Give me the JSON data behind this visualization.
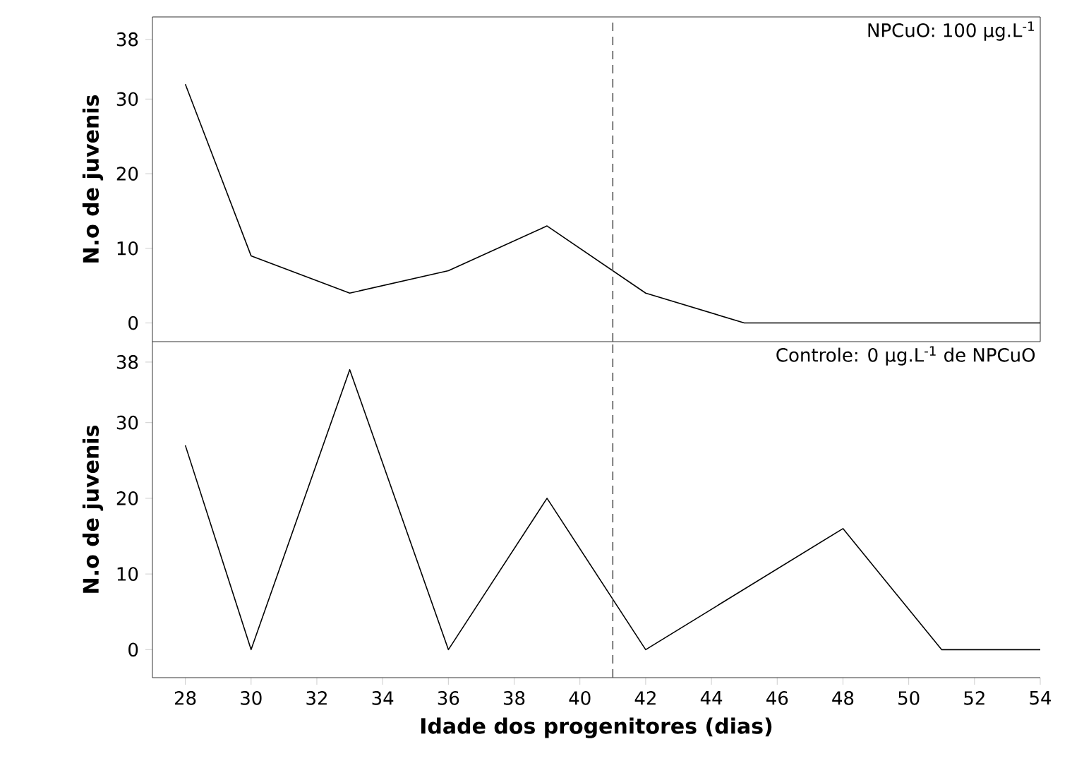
{
  "chart_data": [
    {
      "type": "line",
      "ylabel": "N.o de juvenis",
      "annotations": [
        "NPCuO: 100 µg.L$^{-1}$"
      ],
      "x": [
        28,
        30,
        33,
        36,
        39,
        42,
        45,
        48,
        51,
        54
      ],
      "series": [
        {
          "color": "#000000",
          "values": [
            32,
            9,
            4,
            7,
            13,
            4,
            0,
            0,
            0,
            0
          ]
        }
      ],
      "xlim": [
        27,
        54
      ],
      "ylim": [
        -2.5,
        41
      ],
      "yticks": [
        0,
        10,
        20,
        30,
        38
      ],
      "tick_labels": "y",
      "marker": "none",
      "line_style": "solid",
      "ref_lines": [
        {
          "axis": "x",
          "value": 41,
          "color": "#555555",
          "line_style": "dashed"
        }
      ]
    },
    {
      "type": "line",
      "ylabel": "N.o de juvenis",
      "xlabel": "Idade dos progenitores (dias)",
      "annotations": [
        "Controle: 0 µg.L$^{-1}$ de NPCuO"
      ],
      "x": [
        28,
        30,
        33,
        36,
        39,
        42,
        48,
        51,
        54
      ],
      "series": [
        {
          "color": "#000000",
          "values": [
            27,
            0,
            37,
            0,
            20,
            0,
            16,
            0,
            0
          ]
        }
      ],
      "xlim": [
        27,
        54
      ],
      "ylim": [
        -3.7,
        40.7
      ],
      "xticks": [
        28,
        30,
        32,
        34,
        36,
        38,
        40,
        42,
        44,
        46,
        48,
        50,
        52,
        54
      ],
      "yticks": [
        0,
        10,
        20,
        30,
        38
      ],
      "marker": "none",
      "line_style": "solid",
      "ref_lines": [
        {
          "axis": "x",
          "value": 41,
          "color": "#555555",
          "line_style": "dashed"
        }
      ]
    }
  ]
}
